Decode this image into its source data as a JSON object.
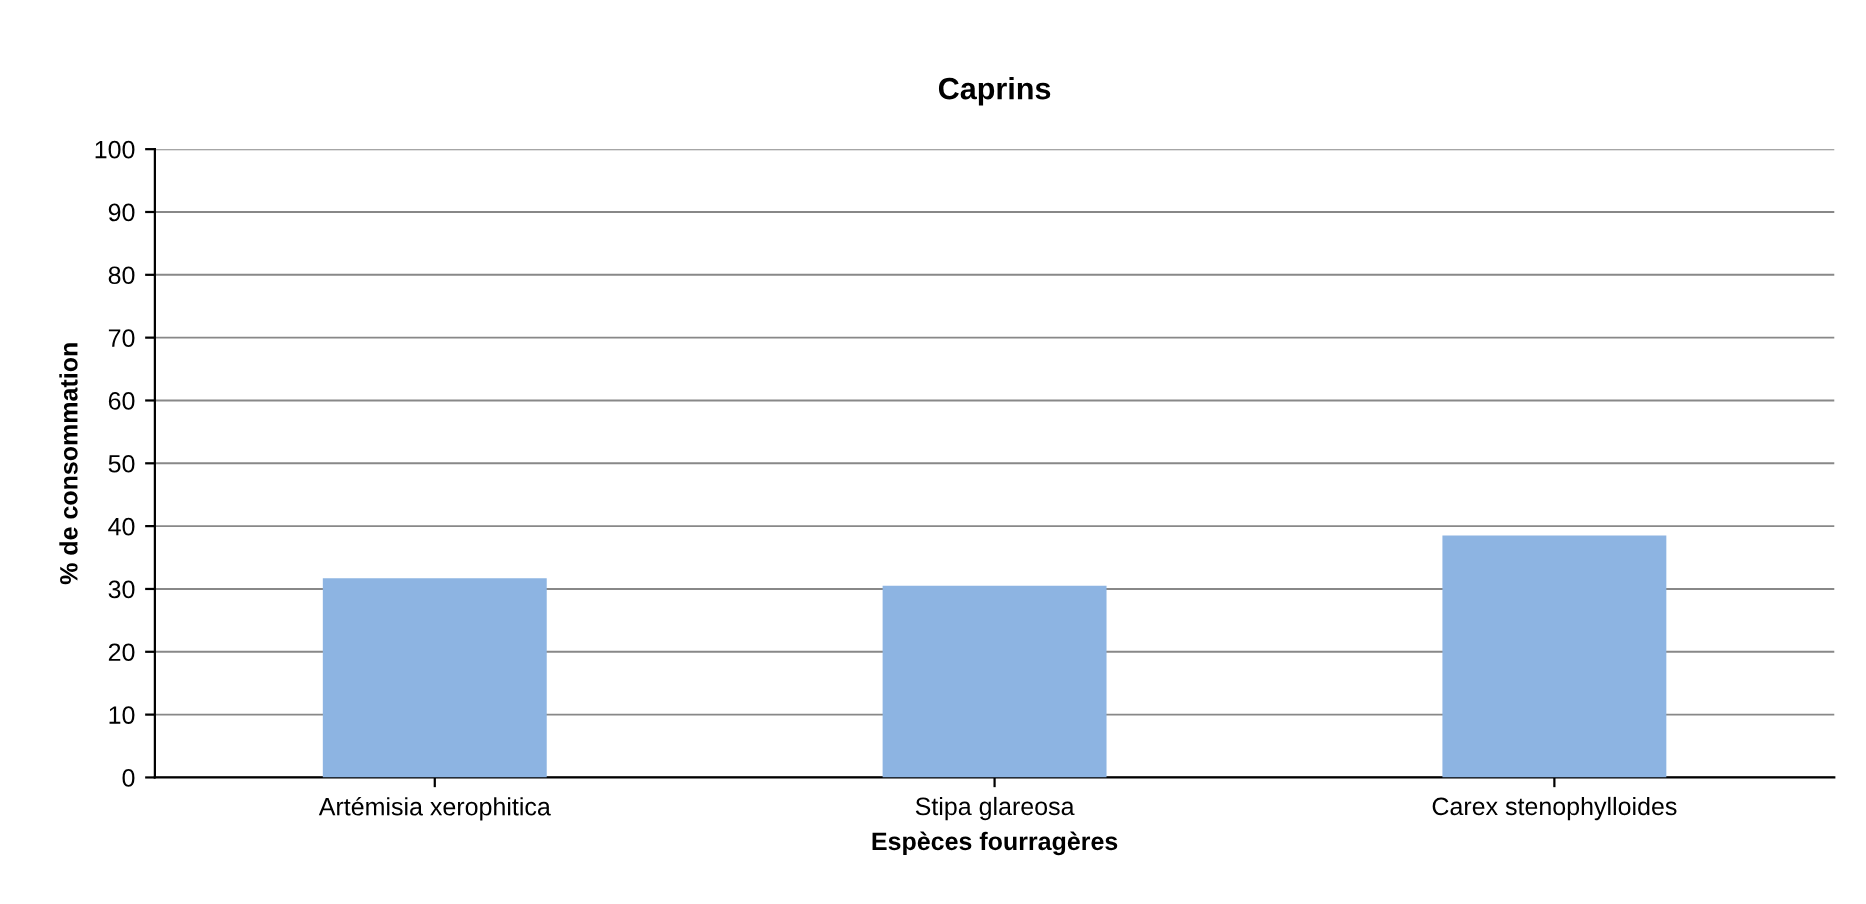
{
  "chart_data": {
    "type": "bar",
    "title": "Caprins",
    "xlabel": "Espèces fourragères",
    "ylabel": "% de consommation",
    "categories": [
      "Artémisia xerophitica",
      "Stipa glareosa",
      "Carex stenophylloides"
    ],
    "values": [
      31.7,
      30.5,
      38.5
    ],
    "color": "#8db4e2",
    "ylim": [
      0,
      100
    ],
    "yticks": [
      0,
      10,
      20,
      30,
      40,
      50,
      60,
      70,
      80,
      90,
      100
    ],
    "grid": "y",
    "legend": false
  }
}
